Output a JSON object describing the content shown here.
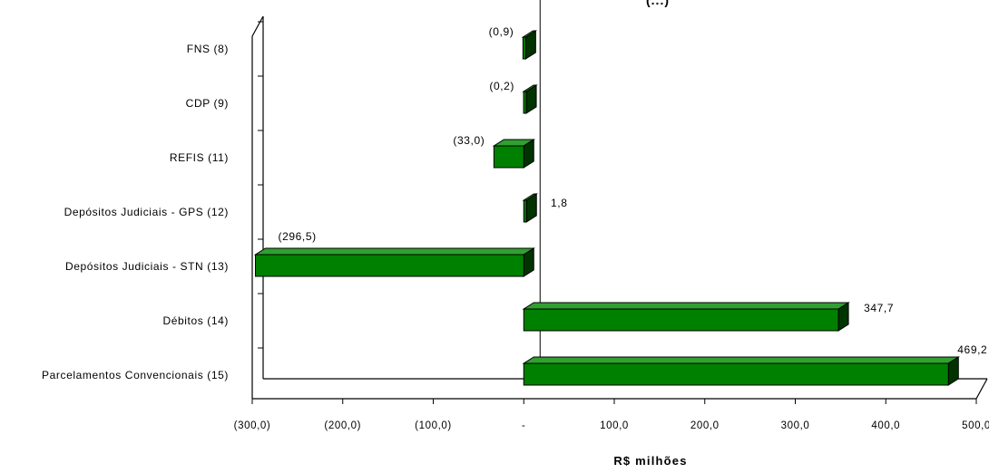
{
  "chart_data": {
    "type": "bar",
    "orientation": "horizontal",
    "style": "3d",
    "title": "(...)",
    "xlabel": "R$ milhões",
    "ylabel": "",
    "xlim": [
      -300,
      500
    ],
    "categories": [
      "FNS (8)",
      "CDP (9)",
      "REFIS (11)",
      "Depósitos Judiciais - GPS (12)",
      "Depósitos Judiciais - STN (13)",
      "Débitos (14)",
      "Parcelamentos Convencionais (15)"
    ],
    "values": [
      -0.9,
      -0.2,
      -33.0,
      1.8,
      -296.5,
      347.7,
      469.2
    ],
    "data_labels": [
      "(0,9)",
      "(0,2)",
      "(33,0)",
      "1,8",
      "(296,5)",
      "347,7",
      "469,2"
    ],
    "x_ticks": [
      -300,
      -200,
      -100,
      0,
      100,
      200,
      300,
      400,
      500
    ],
    "x_tick_labels": [
      "(300,0)",
      "(200,0)",
      "(100,0)",
      "-",
      "100,0",
      "200,0",
      "300,0",
      "400,0",
      "500,0"
    ],
    "bar_color": "#008000",
    "bar_top_color": "#30a030",
    "bar_side_color": "#003300",
    "grid": false,
    "legend": "none"
  }
}
